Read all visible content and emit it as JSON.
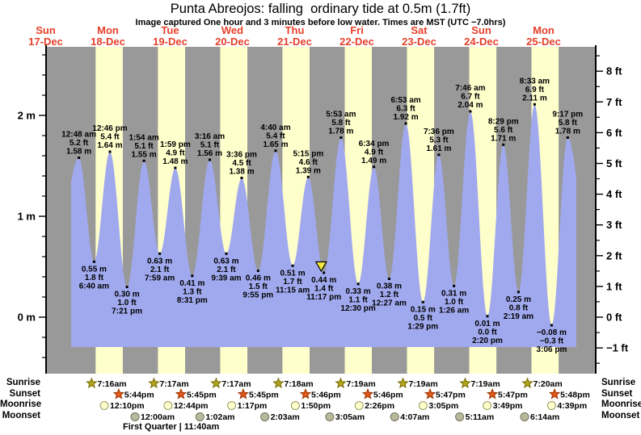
{
  "header": {
    "title": "Punta Abreojos: falling  ordinary tide at 0.5m (1.7ft)",
    "subtitle": "Image captured One hour and 3 minutes before low water. Times are MST (UTC −7.0hrs)",
    "date_color": "#e6402a"
  },
  "chart_data": {
    "type": "area",
    "title": "Punta Abreojos: falling  ordinary tide at 0.5m (1.7ft)",
    "night_color": "#999999",
    "day_color": "#ffffcc",
    "water_color": "#a0a9ee",
    "marker_color": "#f2ea3e",
    "x_axis": {
      "days": [
        {
          "name": "Sun",
          "date": "17-Dec"
        },
        {
          "name": "Mon",
          "date": "18-Dec"
        },
        {
          "name": "Tue",
          "date": "19-Dec"
        },
        {
          "name": "Wed",
          "date": "20-Dec"
        },
        {
          "name": "Thu",
          "date": "21-Dec"
        },
        {
          "name": "Fri",
          "date": "22-Dec"
        },
        {
          "name": "Sat",
          "date": "23-Dec"
        },
        {
          "name": "Sun",
          "date": "24-Dec"
        },
        {
          "name": "Mon",
          "date": "25-Dec"
        }
      ]
    },
    "y_axis_left": {
      "unit": "m",
      "ticks": [
        {
          "v": 0,
          "label": "0 m"
        },
        {
          "v": 1,
          "label": "1 m"
        },
        {
          "v": 2,
          "label": "2 m"
        }
      ],
      "minor_step": 0.2,
      "range_m": [
        -0.55,
        2.66
      ]
    },
    "y_axis_right": {
      "unit": "ft",
      "ticks": [
        {
          "v": -1,
          "label": "−1 ft"
        },
        {
          "v": 0,
          "label": "0 ft"
        },
        {
          "v": 1,
          "label": "1 ft"
        },
        {
          "v": 2,
          "label": "2 ft"
        },
        {
          "v": 3,
          "label": "3 ft"
        },
        {
          "v": 4,
          "label": "4 ft"
        },
        {
          "v": 5,
          "label": "5 ft"
        },
        {
          "v": 6,
          "label": "6 ft"
        },
        {
          "v": 7,
          "label": "7 ft"
        },
        {
          "v": 8,
          "label": "8 ft"
        }
      ]
    },
    "events": [
      {
        "type": "high",
        "t": 0.03333,
        "height_m": 1.58,
        "time": "12:48 am",
        "ft_label": "5.2 ft",
        "m_label": "1.58 m"
      },
      {
        "type": "low",
        "t": 0.27778,
        "height_m": 0.55,
        "time": "6:40 am",
        "ft_label": "1.8 ft",
        "m_label": "0.55 m"
      },
      {
        "type": "high",
        "t": 0.53194,
        "height_m": 1.64,
        "time": "12:46 pm",
        "ft_label": "5.4 ft",
        "m_label": "1.64 m"
      },
      {
        "type": "low",
        "t": 0.80625,
        "height_m": 0.3,
        "time": "7:21 pm",
        "ft_label": "1.0 ft",
        "m_label": "0.30 m"
      },
      {
        "type": "high",
        "t": 1.07917,
        "height_m": 1.55,
        "time": "1:54 am",
        "ft_label": "5.1 ft",
        "m_label": "1.55 m"
      },
      {
        "type": "low",
        "t": 1.33264,
        "height_m": 0.63,
        "time": "7:59 am",
        "ft_label": "2.1 ft",
        "m_label": "0.63 m"
      },
      {
        "type": "high",
        "t": 1.58264,
        "height_m": 1.48,
        "time": "1:59 pm",
        "ft_label": "4.9 ft",
        "m_label": "1.48 m"
      },
      {
        "type": "low",
        "t": 1.85486,
        "height_m": 0.41,
        "time": "8:31 pm",
        "ft_label": "1.3 ft",
        "m_label": "0.41 m"
      },
      {
        "type": "high",
        "t": 2.13611,
        "height_m": 1.56,
        "time": "3:16 am",
        "ft_label": "5.1 ft",
        "m_label": "1.56 m"
      },
      {
        "type": "low",
        "t": 2.40208,
        "height_m": 0.63,
        "time": "9:39 am",
        "ft_label": "2.1 ft",
        "m_label": "0.63 m"
      },
      {
        "type": "high",
        "t": 2.65,
        "height_m": 1.38,
        "time": "3:36 pm",
        "ft_label": "4.5 ft",
        "m_label": "1.38 m"
      },
      {
        "type": "low",
        "t": 2.91319,
        "height_m": 0.46,
        "time": "9:55 pm",
        "ft_label": "1.5 ft",
        "m_label": "0.46 m"
      },
      {
        "type": "high",
        "t": 3.19444,
        "height_m": 1.65,
        "time": "4:40 am",
        "ft_label": "5.4 ft",
        "m_label": "1.65 m"
      },
      {
        "type": "low",
        "t": 3.46875,
        "height_m": 0.51,
        "time": "11:15 am",
        "ft_label": "1.7 ft",
        "m_label": "0.51 m"
      },
      {
        "type": "high",
        "t": 3.71875,
        "height_m": 1.39,
        "time": "5:15 pm",
        "ft_label": "4.6 ft",
        "m_label": "1.39 m"
      },
      {
        "type": "low",
        "t": 3.97014,
        "height_m": 0.44,
        "time": "11:17 pm",
        "ft_label": "1.4 ft",
        "m_label": "0.44 m"
      },
      {
        "type": "high",
        "t": 4.24514,
        "height_m": 1.78,
        "time": "5:53 am",
        "ft_label": "5.8 ft",
        "m_label": "1.78 m"
      },
      {
        "type": "low",
        "t": 4.52083,
        "height_m": 0.33,
        "time": "12:30 pm",
        "ft_label": "1.1 ft",
        "m_label": "0.33 m"
      },
      {
        "type": "high",
        "t": 4.77361,
        "height_m": 1.49,
        "time": "6:34 pm",
        "ft_label": "4.9 ft",
        "m_label": "1.49 m"
      },
      {
        "type": "low",
        "t": 5.01875,
        "height_m": 0.38,
        "time": "12:27 am",
        "ft_label": "1.2 ft",
        "m_label": "0.38 m"
      },
      {
        "type": "high",
        "t": 5.28681,
        "height_m": 1.92,
        "time": "6:53 am",
        "ft_label": "6.3 ft",
        "m_label": "1.92 m"
      },
      {
        "type": "low",
        "t": 5.56181,
        "height_m": 0.15,
        "time": "1:29 pm",
        "ft_label": "0.5 ft",
        "m_label": "0.15 m"
      },
      {
        "type": "high",
        "t": 5.81667,
        "height_m": 1.61,
        "time": "7:36 pm",
        "ft_label": "5.3 ft",
        "m_label": "1.61 m"
      },
      {
        "type": "low",
        "t": 6.05972,
        "height_m": 0.31,
        "time": "1:26 am",
        "ft_label": "1.0 ft",
        "m_label": "0.31 m"
      },
      {
        "type": "high",
        "t": 6.32361,
        "height_m": 2.04,
        "time": "7:46 am",
        "ft_label": "6.7 ft",
        "m_label": "2.04 m"
      },
      {
        "type": "low",
        "t": 6.59722,
        "height_m": 0.01,
        "time": "2:20 pm",
        "ft_label": "0.0 ft",
        "m_label": "0.01 m"
      },
      {
        "type": "high",
        "t": 6.85347,
        "height_m": 1.71,
        "time": "8:29 pm",
        "ft_label": "5.6 ft",
        "m_label": "1.71 m"
      },
      {
        "type": "low",
        "t": 7.09653,
        "height_m": 0.25,
        "time": "2:19 am",
        "ft_label": "0.8 ft",
        "m_label": "0.25 m"
      },
      {
        "type": "high",
        "t": 7.35625,
        "height_m": 2.11,
        "time": "8:33 am",
        "ft_label": "6.9 ft",
        "m_label": "2.11 m"
      },
      {
        "type": "low",
        "t": 7.62917,
        "height_m": -0.08,
        "time": "3:06 pm",
        "ft_label": "−0.3 ft",
        "m_label": "−0.08 m"
      },
      {
        "type": "high",
        "t": 7.88681,
        "height_m": 1.78,
        "time": "9:17 pm",
        "ft_label": "5.8 ft",
        "m_label": "1.78 m"
      }
    ],
    "marker": {
      "t": 3.9264
    },
    "water": {
      "pre_t": -0.4,
      "pre_h": 0.3,
      "post_t": 8.28,
      "post_h": 0.3
    }
  },
  "almanac": {
    "rows": [
      {
        "id": "sunrise",
        "label": "Sunrise",
        "icon": "sunrise-star",
        "fill": "#b3a41e",
        "stroke": "#756b00",
        "entries": [
          {
            "time": "7:16am",
            "t": 0.30278
          },
          {
            "time": "7:17am",
            "t": 1.30347
          },
          {
            "time": "7:17am",
            "t": 2.30347
          },
          {
            "time": "7:18am",
            "t": 3.30417
          },
          {
            "time": "7:19am",
            "t": 4.30486
          },
          {
            "time": "7:19am",
            "t": 5.30486
          },
          {
            "time": "7:19am",
            "t": 6.30486
          },
          {
            "time": "7:20am",
            "t": 7.30556
          }
        ]
      },
      {
        "id": "sunset",
        "label": "Sunset",
        "icon": "sunset-star",
        "fill": "#e2591a",
        "stroke": "#993300",
        "entries": [
          {
            "time": "5:44pm",
            "t": 0.73889
          },
          {
            "time": "5:45pm",
            "t": 1.73958
          },
          {
            "time": "5:45pm",
            "t": 2.73958
          },
          {
            "time": "5:46pm",
            "t": 3.74028
          },
          {
            "time": "5:46pm",
            "t": 4.74028
          },
          {
            "time": "5:47pm",
            "t": 5.74097
          },
          {
            "time": "5:47pm",
            "t": 6.74097
          },
          {
            "time": "5:48pm",
            "t": 7.74167
          }
        ]
      },
      {
        "id": "moonrise",
        "label": "Moonrise",
        "icon": "moonrise-circle",
        "fill": "#ffffcc",
        "stroke": "#999966",
        "entries": [
          {
            "time": "12:10pm",
            "t": 0.50694
          },
          {
            "time": "12:44pm",
            "t": 1.53056
          },
          {
            "time": "1:17pm",
            "t": 2.55347
          },
          {
            "time": "1:50pm",
            "t": 3.57639
          },
          {
            "time": "2:26pm",
            "t": 4.60139
          },
          {
            "time": "3:05pm",
            "t": 5.62847
          },
          {
            "time": "3:49pm",
            "t": 6.65903
          },
          {
            "time": "4:39pm",
            "t": 7.69375
          }
        ]
      },
      {
        "id": "moonset",
        "label": "Moonset",
        "icon": "moonset-circle",
        "fill": "#b9b99b",
        "stroke": "#70705a",
        "entries": [
          {
            "time": "12:00am",
            "t": 1.0
          },
          {
            "time": "1:02am",
            "t": 2.04306
          },
          {
            "time": "2:03am",
            "t": 3.08542
          },
          {
            "time": "3:05am",
            "t": 4.12847
          },
          {
            "time": "4:07am",
            "t": 5.17153
          },
          {
            "time": "5:11am",
            "t": 6.21597
          },
          {
            "time": "6:14am",
            "t": 7.25972
          }
        ]
      }
    ],
    "moon_phase": "First Quarter | 11:40am"
  }
}
